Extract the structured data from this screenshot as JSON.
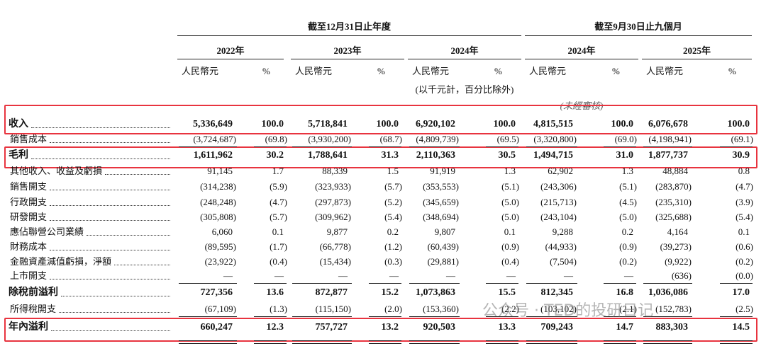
{
  "header": {
    "period_groups": [
      "截至12月31日止年度",
      "截至9月30日止九個月"
    ],
    "columns": [
      {
        "year": "2022年",
        "amount_label": "人民幣元",
        "pct_label": "%"
      },
      {
        "year": "2023年",
        "amount_label": "人民幣元",
        "pct_label": "%"
      },
      {
        "year": "2024年",
        "amount_label": "人民幣元",
        "pct_label": "%"
      },
      {
        "year": "2024年",
        "amount_label": "人民幣元",
        "pct_label": "%"
      },
      {
        "year": "2025年",
        "amount_label": "人民幣元",
        "pct_label": "%"
      }
    ],
    "unit_note": "(以千元計，百分比除外)",
    "audit_note": "(未經審核)"
  },
  "table": {
    "rows": [
      {
        "label": "收入",
        "values": [
          "5,336,649",
          "100.0",
          "5,718,841",
          "100.0",
          "6,920,102",
          "100.0",
          "4,815,515",
          "100.0",
          "6,076,678",
          "100.0"
        ]
      },
      {
        "label": "銷售成本",
        "values": [
          "(3,724,687)",
          "(69.8)",
          "(3,930,200)",
          "(68.7)",
          "(4,809,739)",
          "(69.5)",
          "(3,320,800)",
          "(69.0)",
          "(4,198,941)",
          "(69.1)"
        ]
      },
      {
        "label": "毛利",
        "values": [
          "1,611,962",
          "30.2",
          "1,788,641",
          "31.3",
          "2,110,363",
          "30.5",
          "1,494,715",
          "31.0",
          "1,877,737",
          "30.9"
        ]
      },
      {
        "label": "其他收入、收益及虧損",
        "values": [
          "91,145",
          "1.7",
          "88,339",
          "1.5",
          "91,919",
          "1.3",
          "62,902",
          "1.3",
          "48,884",
          "0.8"
        ]
      },
      {
        "label": "銷售開支",
        "values": [
          "(314,238)",
          "(5.9)",
          "(323,933)",
          "(5.7)",
          "(353,553)",
          "(5.1)",
          "(243,306)",
          "(5.1)",
          "(283,870)",
          "(4.7)"
        ]
      },
      {
        "label": "行政開支",
        "values": [
          "(248,248)",
          "(4.7)",
          "(297,873)",
          "(5.2)",
          "(345,659)",
          "(5.0)",
          "(215,713)",
          "(4.5)",
          "(235,310)",
          "(3.9)"
        ]
      },
      {
        "label": "研發開支",
        "values": [
          "(305,808)",
          "(5.7)",
          "(309,962)",
          "(5.4)",
          "(348,694)",
          "(5.0)",
          "(243,104)",
          "(5.0)",
          "(325,688)",
          "(5.4)"
        ]
      },
      {
        "label": "應佔聯營公司業績",
        "values": [
          "6,060",
          "0.1",
          "9,877",
          "0.2",
          "9,807",
          "0.1",
          "9,288",
          "0.2",
          "4,164",
          "0.1"
        ]
      },
      {
        "label": "財務成本",
        "values": [
          "(89,595)",
          "(1.7)",
          "(66,778)",
          "(1.2)",
          "(60,439)",
          "(0.9)",
          "(44,933)",
          "(0.9)",
          "(39,273)",
          "(0.6)"
        ]
      },
      {
        "label": "金融資產減值虧損，淨額",
        "values": [
          "(23,922)",
          "(0.4)",
          "(15,434)",
          "(0.3)",
          "(29,881)",
          "(0.4)",
          "(7,504)",
          "(0.2)",
          "(9,922)",
          "(0.2)"
        ]
      },
      {
        "label": "上市開支",
        "values": [
          "—",
          "—",
          "—",
          "—",
          "—",
          "—",
          "—",
          "—",
          "(636)",
          "(0.0)"
        ]
      },
      {
        "label": "除稅前溢利",
        "values": [
          "727,356",
          "13.6",
          "872,877",
          "15.2",
          "1,073,863",
          "15.5",
          "812,345",
          "16.8",
          "1,036,086",
          "17.0"
        ]
      },
      {
        "label": "所得稅開支",
        "values": [
          "(67,109)",
          "(1.3)",
          "(115,150)",
          "(2.0)",
          "(153,360)",
          "(2.2)",
          "(103,102)",
          "(2.1)",
          "(152,783)",
          "(2.5)"
        ]
      },
      {
        "label": "年內溢利",
        "values": [
          "660,247",
          "12.3",
          "757,727",
          "13.2",
          "920,503",
          "13.3",
          "709,243",
          "14.7",
          "883,303",
          "14.5"
        ]
      }
    ]
  },
  "watermark": "公众号 · TED的投研日记"
}
